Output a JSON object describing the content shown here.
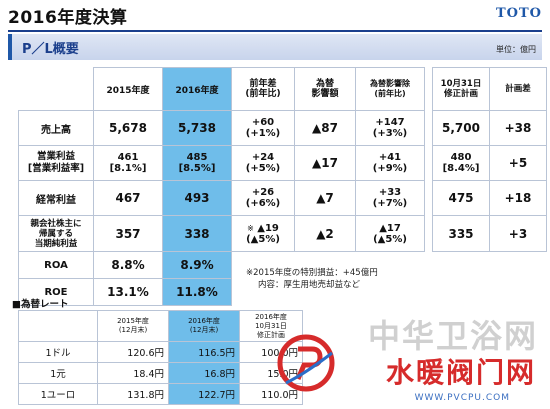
{
  "header": {
    "title": "2016年度決算",
    "brand": "TOTO",
    "section_title": "P／L概要",
    "unit": "単位：億円"
  },
  "main_table": {
    "columns": [
      "2015年度",
      "2016年度",
      "前年差\n(前年比)",
      "為替\n影響額",
      "為替影響除\n(前年比)"
    ],
    "rows": [
      {
        "label": "売上高",
        "fy2015": "5,678",
        "fy2016": "5,738",
        "diff": "+60",
        "diff_pct": "(+1%)",
        "fx": "▲87",
        "ex_fx": "+147",
        "ex_fx_pct": "(+3%)"
      },
      {
        "label": "営業利益\n[営業利益率]",
        "fy2015": "461",
        "fy2015_sub": "[8.1%]",
        "fy2016": "485",
        "fy2016_sub": "[8.5%]",
        "diff": "+24",
        "diff_pct": "(+5%)",
        "fx": "▲17",
        "ex_fx": "+41",
        "ex_fx_pct": "(+9%)"
      },
      {
        "label": "経常利益",
        "fy2015": "467",
        "fy2016": "493",
        "diff": "+26",
        "diff_pct": "(+6%)",
        "fx": "▲7",
        "ex_fx": "+33",
        "ex_fx_pct": "(+7%)"
      },
      {
        "label": "親会社株主に\n帰属する\n当期純利益",
        "fy2015": "357",
        "fy2016": "338",
        "diff_mark": "※",
        "diff": "▲19",
        "diff_pct": "(▲5%)",
        "fx": "▲2",
        "ex_fx": "▲17",
        "ex_fx_pct": "(▲5%)"
      },
      {
        "label": "ROA",
        "fy2015": "8.8%",
        "fy2016": "8.9%"
      },
      {
        "label": "ROE",
        "fy2015": "13.1%",
        "fy2016": "11.8%"
      }
    ]
  },
  "forecast_table": {
    "columns": [
      "10月31日\n修正計画",
      "計画差"
    ],
    "rows": [
      {
        "plan": "5,700",
        "diff": "+38"
      },
      {
        "plan": "480",
        "plan_sub": "[8.4%]",
        "diff": "+5"
      },
      {
        "plan": "475",
        "diff": "+18"
      },
      {
        "plan": "335",
        "diff": "+3"
      }
    ]
  },
  "note": {
    "line1": "※2015年度の特別損益：+45億円",
    "line2": "内容：厚生用地売却益など"
  },
  "fx_rates": {
    "title": "■為替レート",
    "columns": [
      "2015年度\n(12月末)",
      "2016年度\n(12月末)",
      "2016年度\n10月31日\n修正計画"
    ],
    "rows": [
      {
        "label": "1ドル",
        "fy2015": "120.6円",
        "fy2016": "116.5円",
        "plan": "100.0円"
      },
      {
        "label": "1元",
        "fy2015": "18.4円",
        "fy2016": "16.8円",
        "plan": "15.0円"
      },
      {
        "label": "1ユーロ",
        "fy2015": "131.8円",
        "fy2016": "122.7円",
        "plan": "110.0円"
      }
    ]
  },
  "watermark": {
    "line1": "中华卫浴网",
    "line2": "水暖阀门网",
    "url": "WWW.PVCPU.COM"
  },
  "colors": {
    "highlight": "#6fbdea",
    "brand": "#1f58a8",
    "border": "#b9c4d6"
  }
}
